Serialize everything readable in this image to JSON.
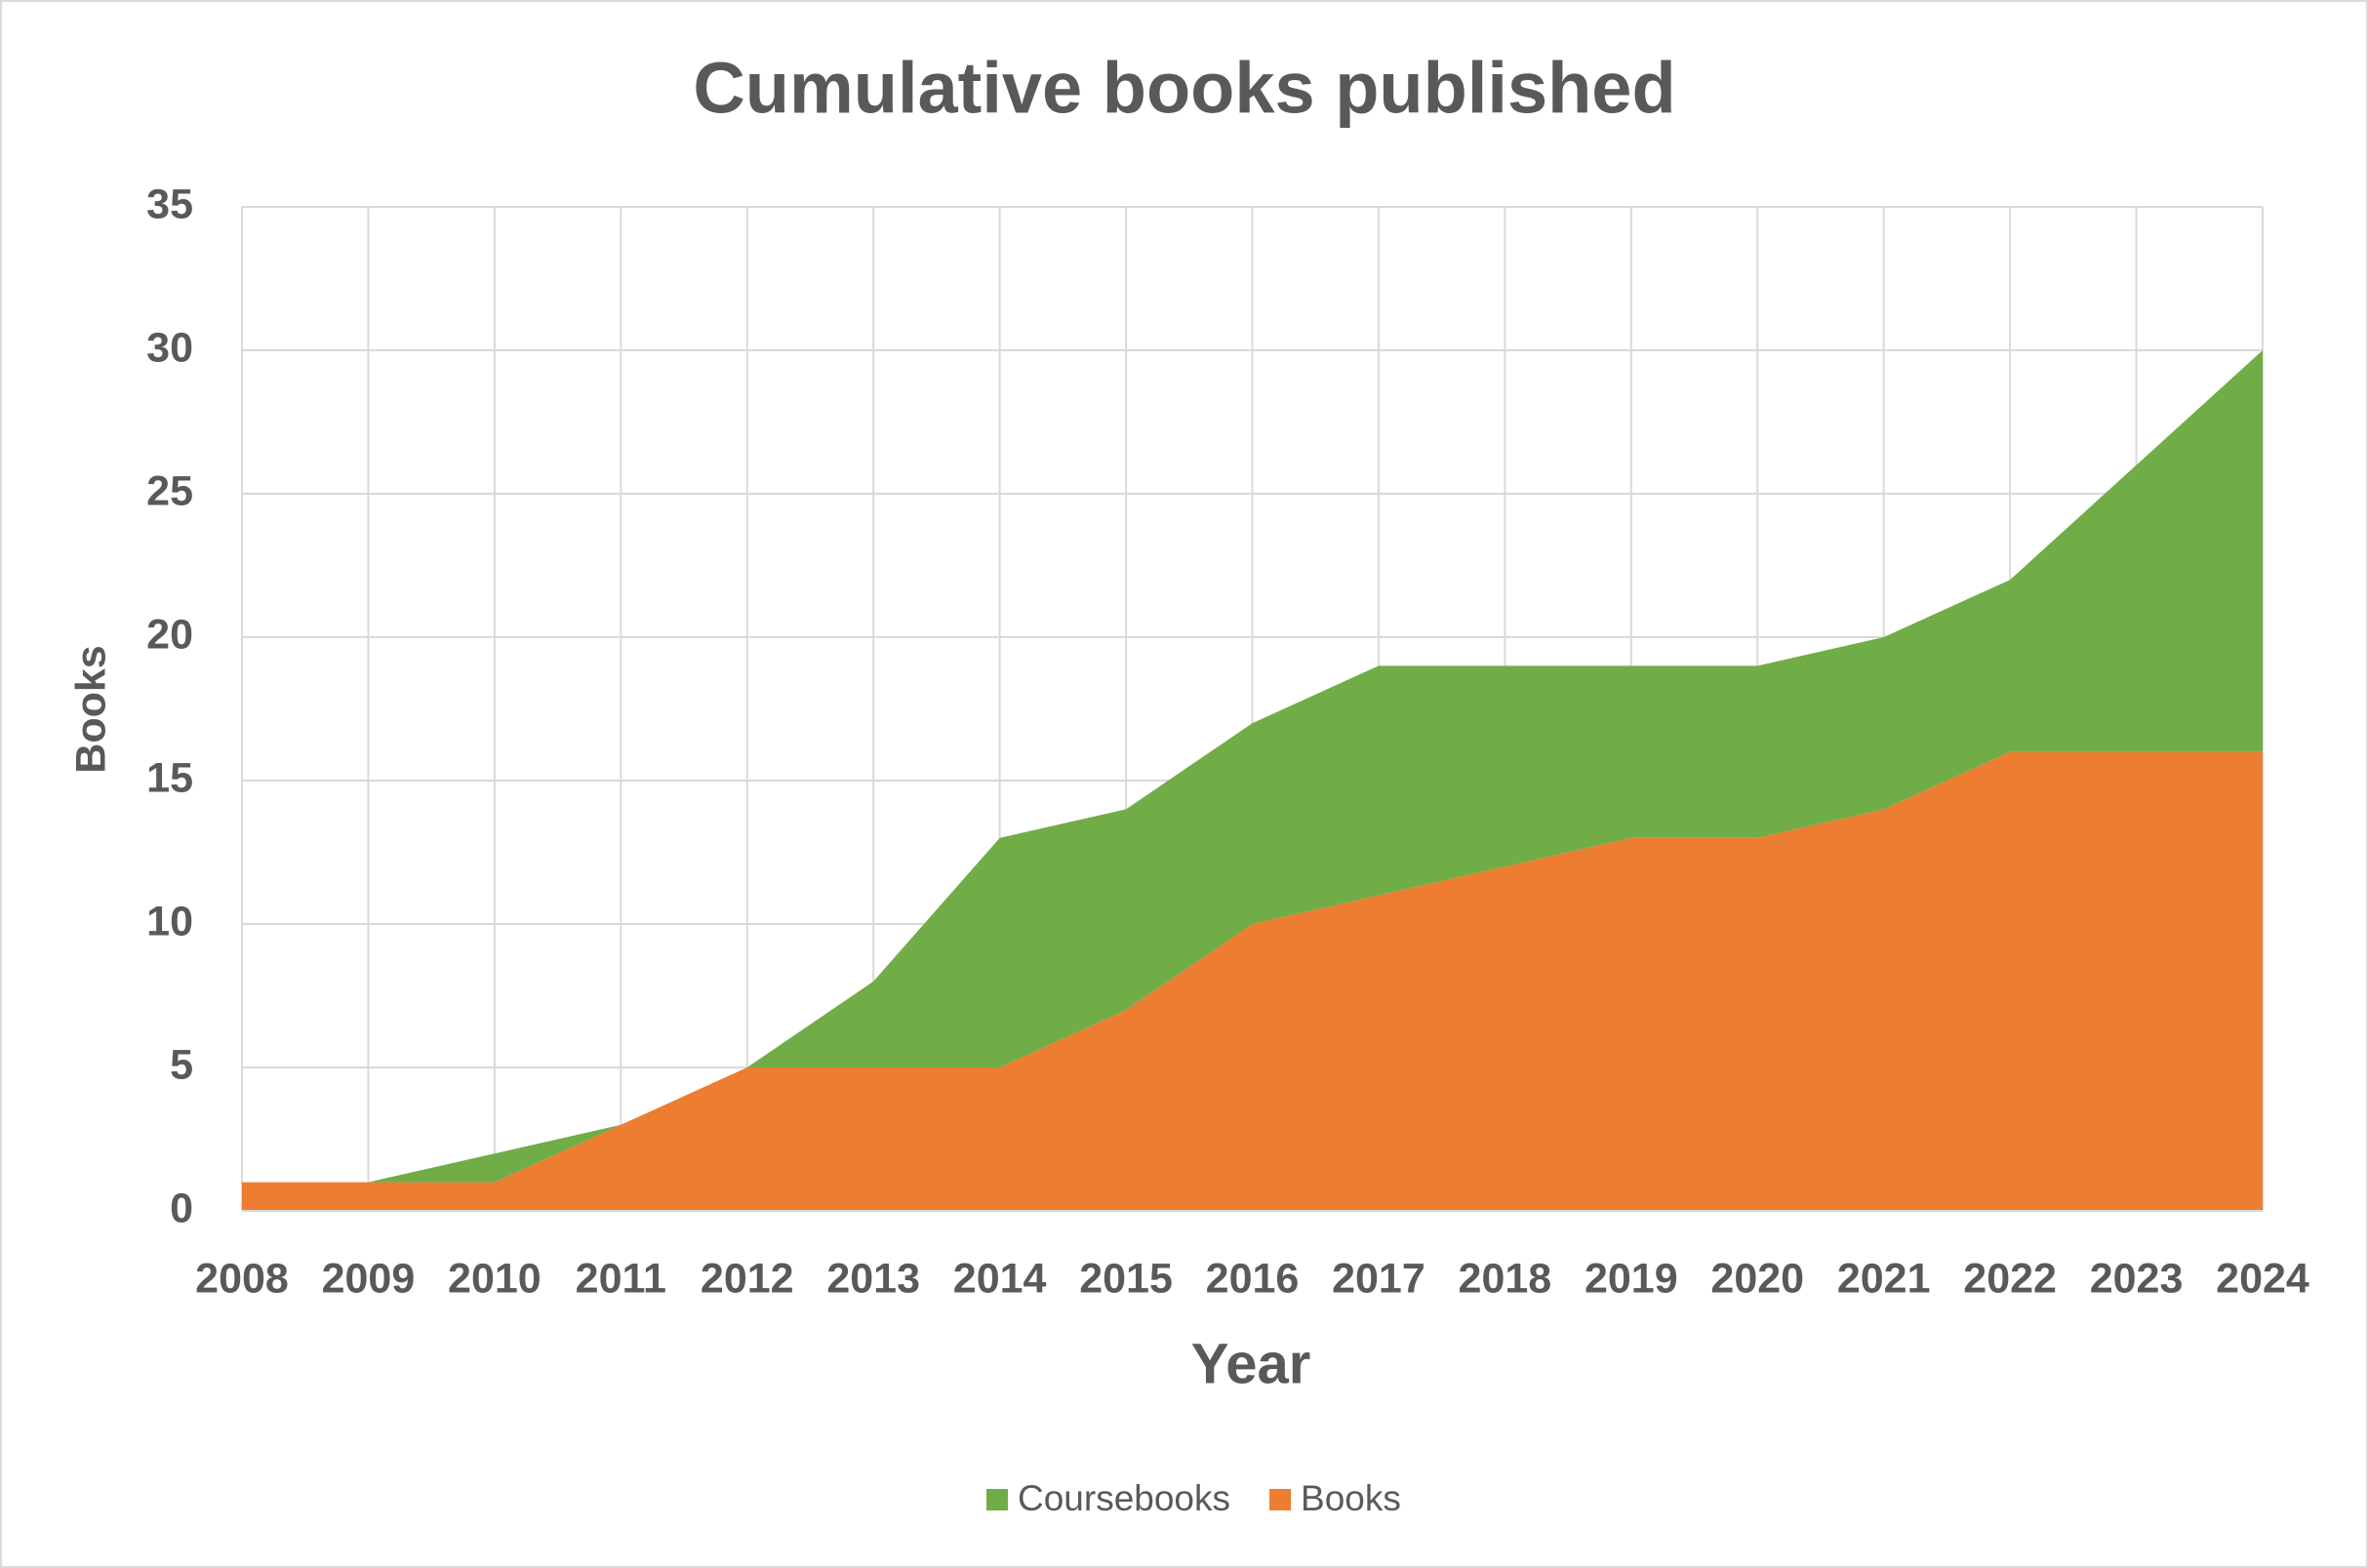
{
  "chart_data": {
    "type": "stacked_area",
    "title": "Cumulative books published",
    "x_label": "Year",
    "y_label": "Books",
    "categories": [
      "2008",
      "2009",
      "2010",
      "2011",
      "2012",
      "2013",
      "2014",
      "2015",
      "2016",
      "2017",
      "2018",
      "2019",
      "2020",
      "2021",
      "2022",
      "2023",
      "2024"
    ],
    "series": [
      {
        "name": "Coursebooks",
        "color": "#70ad47",
        "values": [
          0,
          0,
          1,
          0,
          0,
          3,
          8,
          7,
          7,
          8,
          7,
          6,
          6,
          6,
          6,
          10,
          14
        ]
      },
      {
        "name": "Books",
        "color": "#ed7d31",
        "values": [
          1,
          1,
          1,
          3,
          5,
          5,
          5,
          7,
          10,
          11,
          12,
          13,
          13,
          14,
          16,
          16,
          16
        ]
      }
    ],
    "ylim": [
      0,
      35
    ],
    "yticks": [
      0,
      5,
      10,
      15,
      20,
      25,
      30,
      35
    ],
    "grid": true,
    "legend": "bottom"
  }
}
